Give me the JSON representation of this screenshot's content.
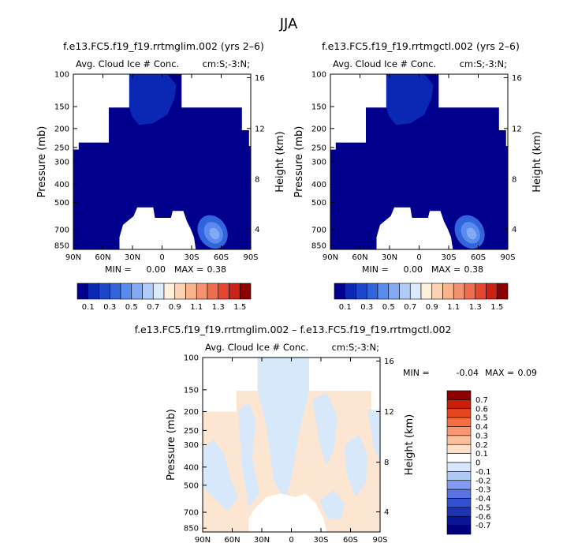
{
  "chart_data": {
    "title": "JJA",
    "panels": [
      {
        "type": "contour",
        "case_title": "f.e13.FC5.f19_f19.rrtmglim.002 (yrs 2–6)",
        "left_label": "Avg. Cloud Ice # Conc.",
        "right_label": "cm:S;-3:N;",
        "ylabel": "Pressure (mb)",
        "ylabel_right": "Height (km)",
        "x_ticks": [
          "90N",
          "60N",
          "30N",
          "0",
          "30S",
          "60S",
          "90S"
        ],
        "y_ticks": [
          "100",
          "150",
          "200",
          "250",
          "300",
          "400",
          "500",
          "700",
          "850"
        ],
        "height_ticks": [
          "16",
          "12",
          "8",
          "4"
        ],
        "stats": {
          "min_label": "MIN =",
          "min": "0.00",
          "max_label": "MAX =",
          "max": "0.38"
        },
        "colorbar": [
          "0.1",
          "0.3",
          "0.5",
          "0.7",
          "0.9",
          "1.1",
          "1.3",
          "1.5"
        ]
      },
      {
        "type": "contour",
        "case_title": "f.e13.FC5.f19_f19.rrtmgctl.002 (yrs 2–6)",
        "left_label": "Avg. Cloud Ice # Conc.",
        "right_label": "cm:S;-3:N;",
        "ylabel": "Pressure (mb)",
        "ylabel_right": "Height (km)",
        "x_ticks": [
          "90N",
          "60N",
          "30N",
          "0",
          "30S",
          "60S",
          "90S"
        ],
        "y_ticks": [
          "100",
          "150",
          "200",
          "250",
          "300",
          "400",
          "500",
          "700",
          "850"
        ],
        "height_ticks": [
          "16",
          "12",
          "8",
          "4"
        ],
        "stats": {
          "min_label": "MIN =",
          "min": "0.00",
          "max_label": "MAX =",
          "max": "0.38"
        },
        "colorbar": [
          "0.1",
          "0.3",
          "0.5",
          "0.7",
          "0.9",
          "1.1",
          "1.3",
          "1.5"
        ]
      },
      {
        "type": "contour",
        "case_title": "f.e13.FC5.f19_f19.rrtmglim.002 – f.e13.FC5.f19_f19.rrtmgctl.002",
        "left_label": "Avg. Cloud Ice # Conc.",
        "right_label": "cm:S;-3:N;",
        "ylabel": "Pressure (mb)",
        "ylabel_right": "Height (km)",
        "x_ticks": [
          "90N",
          "60N",
          "30N",
          "0",
          "30S",
          "60S",
          "90S"
        ],
        "y_ticks": [
          "100",
          "150",
          "200",
          "250",
          "300",
          "400",
          "500",
          "700",
          "850"
        ],
        "height_ticks": [
          "16",
          "12",
          "8",
          "4"
        ],
        "stats": {
          "min_label": "MIN =",
          "min": "-0.04",
          "max_label": "MAX =",
          "max": "0.09"
        },
        "colorbar": [
          "0.7",
          "0.6",
          "0.5",
          "0.4",
          "0.3",
          "0.2",
          "0.1",
          "0",
          "-0.1",
          "-0.2",
          "-0.3",
          "-0.4",
          "-0.5",
          "-0.6",
          "-0.7"
        ]
      }
    ],
    "colors": {
      "abs_scale": [
        "#00008c",
        "#0a28b4",
        "#1e46c8",
        "#3264dc",
        "#5a8cf0",
        "#82aaf5",
        "#afcdfa",
        "#dcebfc",
        "#fff0dc",
        "#fcd2b4",
        "#fab48c",
        "#f5916e",
        "#f06e50",
        "#e6462d",
        "#c82314",
        "#8c0000"
      ],
      "diff_scale": [
        "#8c0000",
        "#c81e0a",
        "#e6461e",
        "#f56e41",
        "#fa966e",
        "#fcbe9b",
        "#fde1c8",
        "#ffffff",
        "#d7e6fa",
        "#afc8f5",
        "#829bf0",
        "#5a73e1",
        "#3250d2",
        "#1e32b4",
        "#0a1496",
        "#00007d"
      ],
      "diff_pos": "#fce6d2",
      "diff_neg": "#d7e8fa"
    }
  }
}
